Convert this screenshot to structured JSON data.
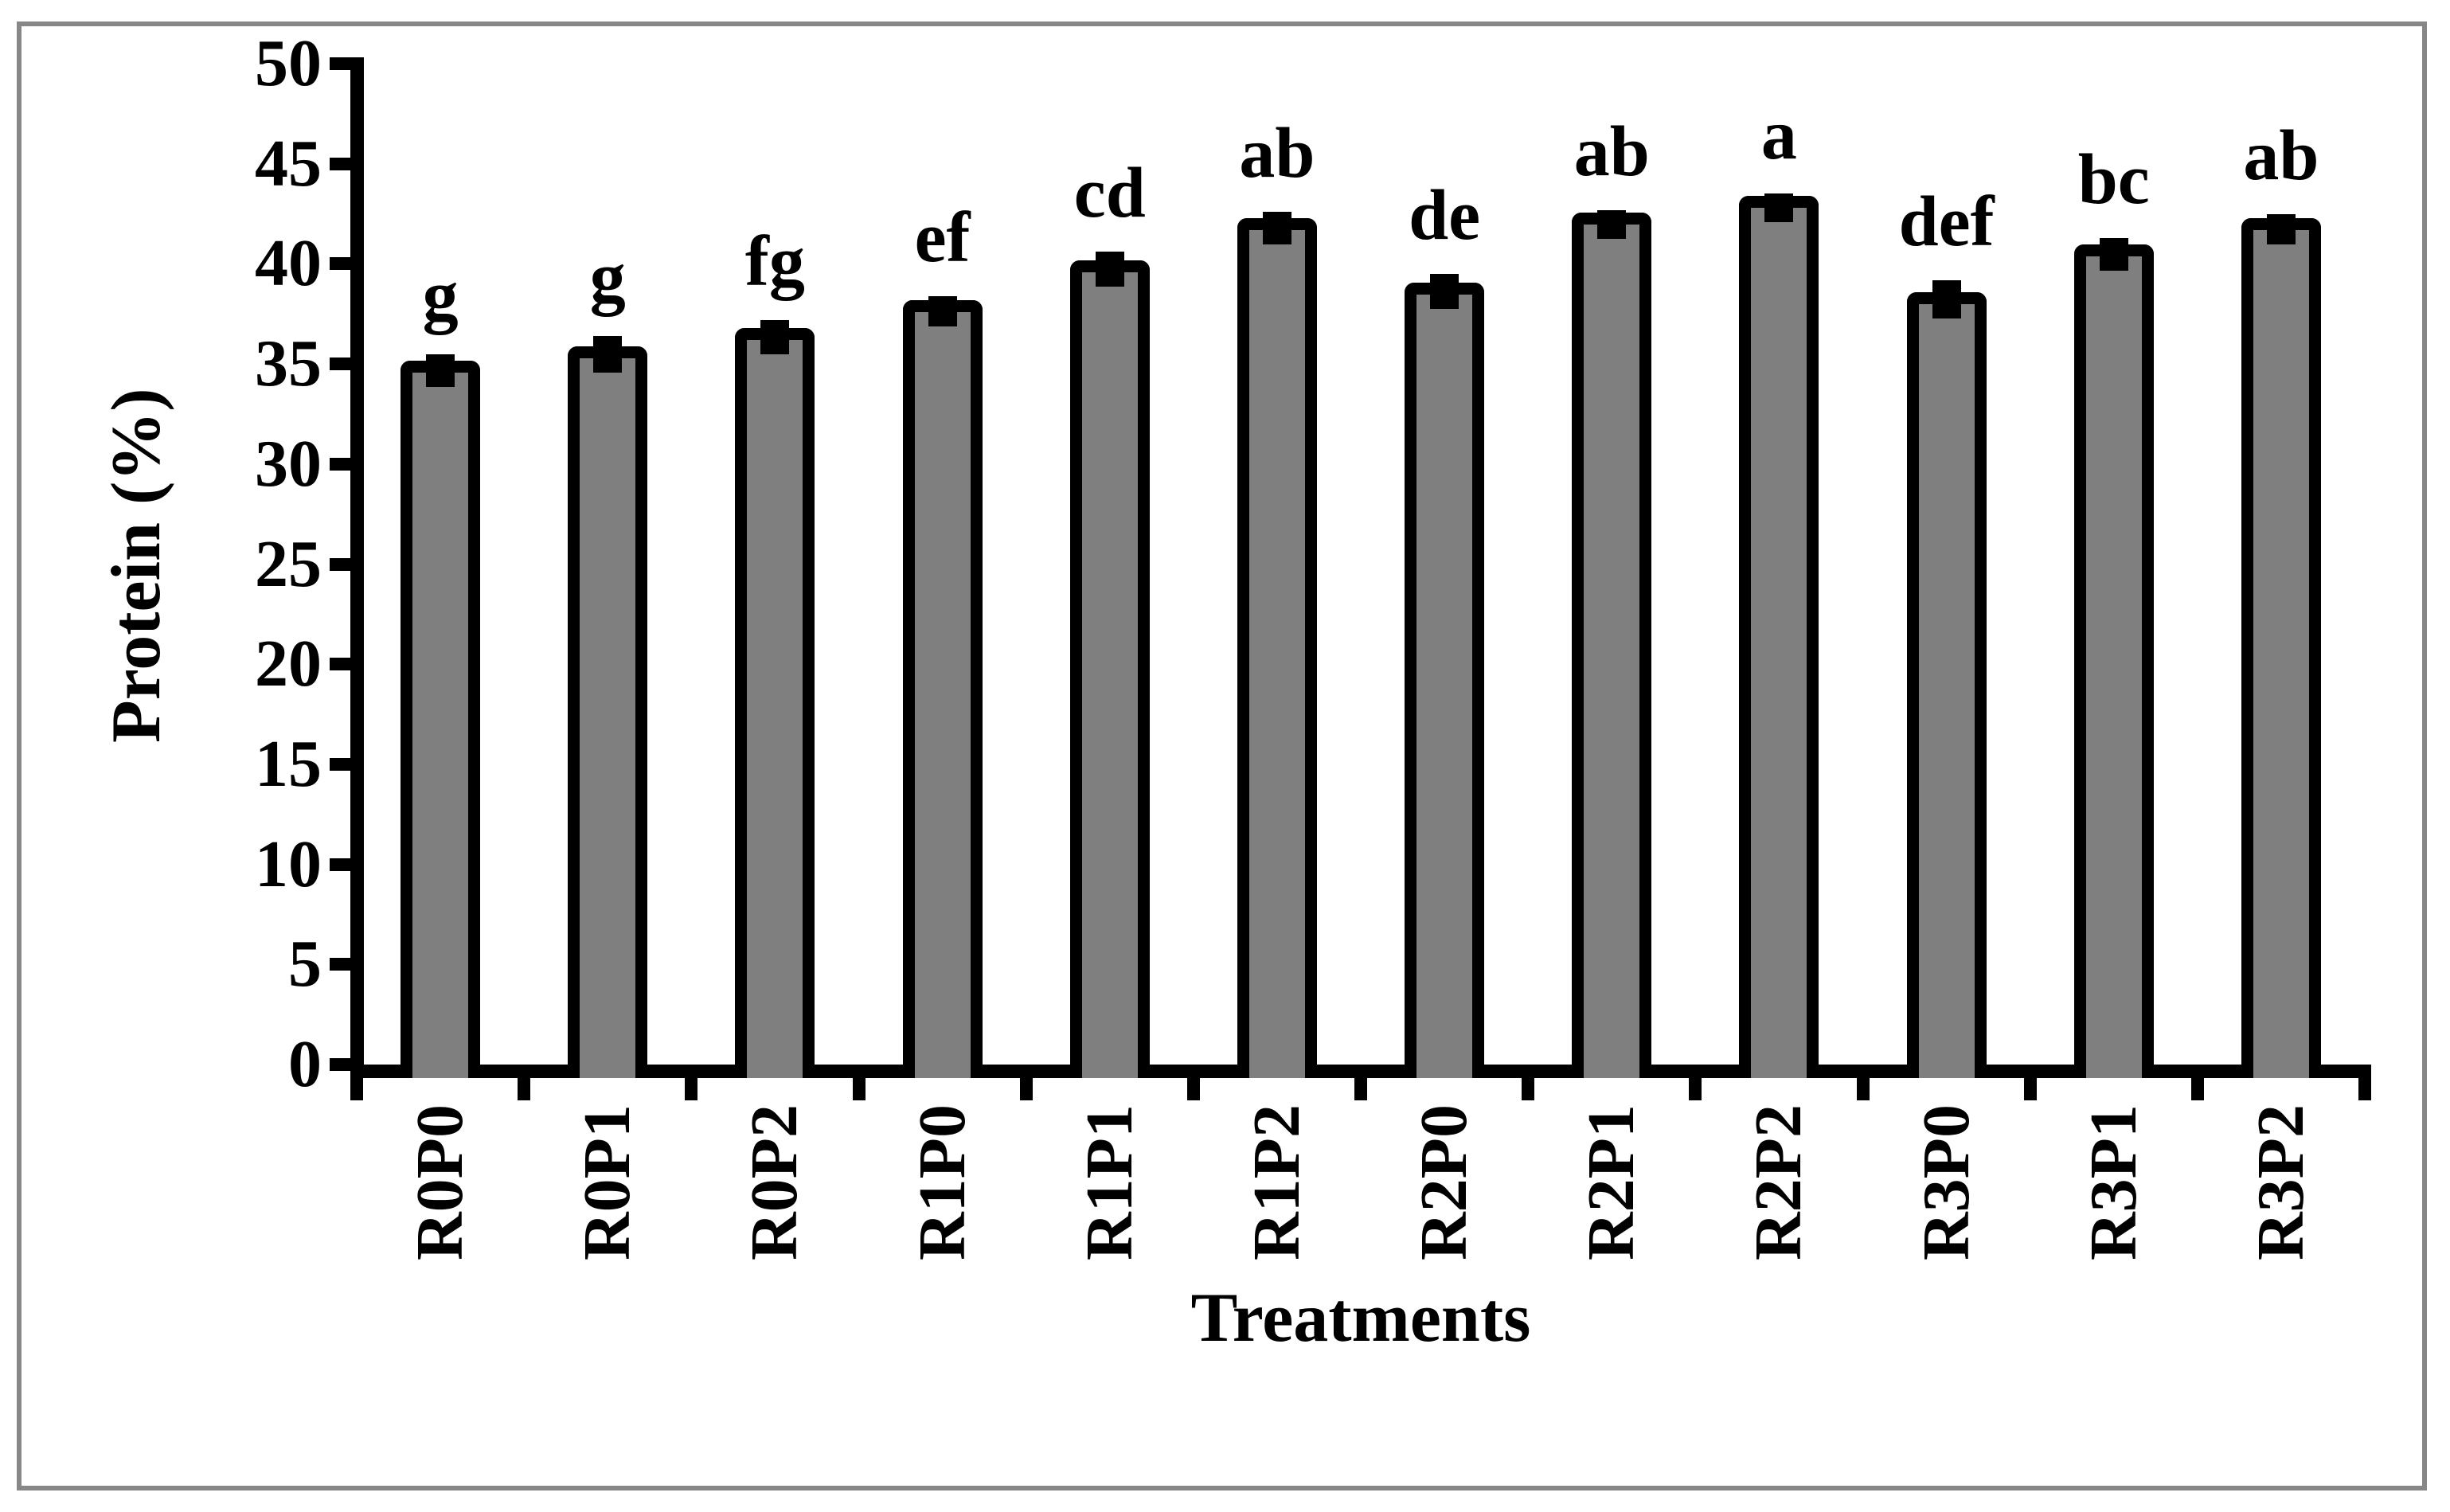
{
  "figure": {
    "background": "#ffffff",
    "border_color": "#878787"
  },
  "chart_data": {
    "type": "bar",
    "title": "",
    "xlabel": "Treatments",
    "ylabel": "Protein (%)",
    "ylim": [
      0,
      50
    ],
    "ytick_step": 5,
    "yticks": [
      "0",
      "5",
      "10",
      "15",
      "20",
      "25",
      "30",
      "35",
      "40",
      "45",
      "50"
    ],
    "grid": false,
    "legend": null,
    "bar_fill_color": "#7f7f7f",
    "bar_border_color": "#000000",
    "categories": [
      "R0P0",
      "R0P1",
      "R0P2",
      "R1P0",
      "R1P1",
      "R1P2",
      "R2P0",
      "R2P1",
      "R2P2",
      "R3P0",
      "R3P1",
      "R3P2"
    ],
    "values": [
      34.9,
      35.6,
      36.5,
      37.9,
      39.9,
      42.0,
      38.8,
      42.3,
      43.1,
      38.3,
      40.7,
      42.0
    ],
    "errors": [
      0.6,
      0.8,
      0.7,
      0.5,
      0.7,
      0.6,
      0.7,
      0.4,
      0.4,
      0.9,
      0.6,
      0.5
    ],
    "sig_letters": [
      "g",
      "g",
      "fg",
      "ef",
      "cd",
      "ab",
      "de",
      "ab",
      "a",
      "def",
      "bc",
      "ab"
    ]
  }
}
